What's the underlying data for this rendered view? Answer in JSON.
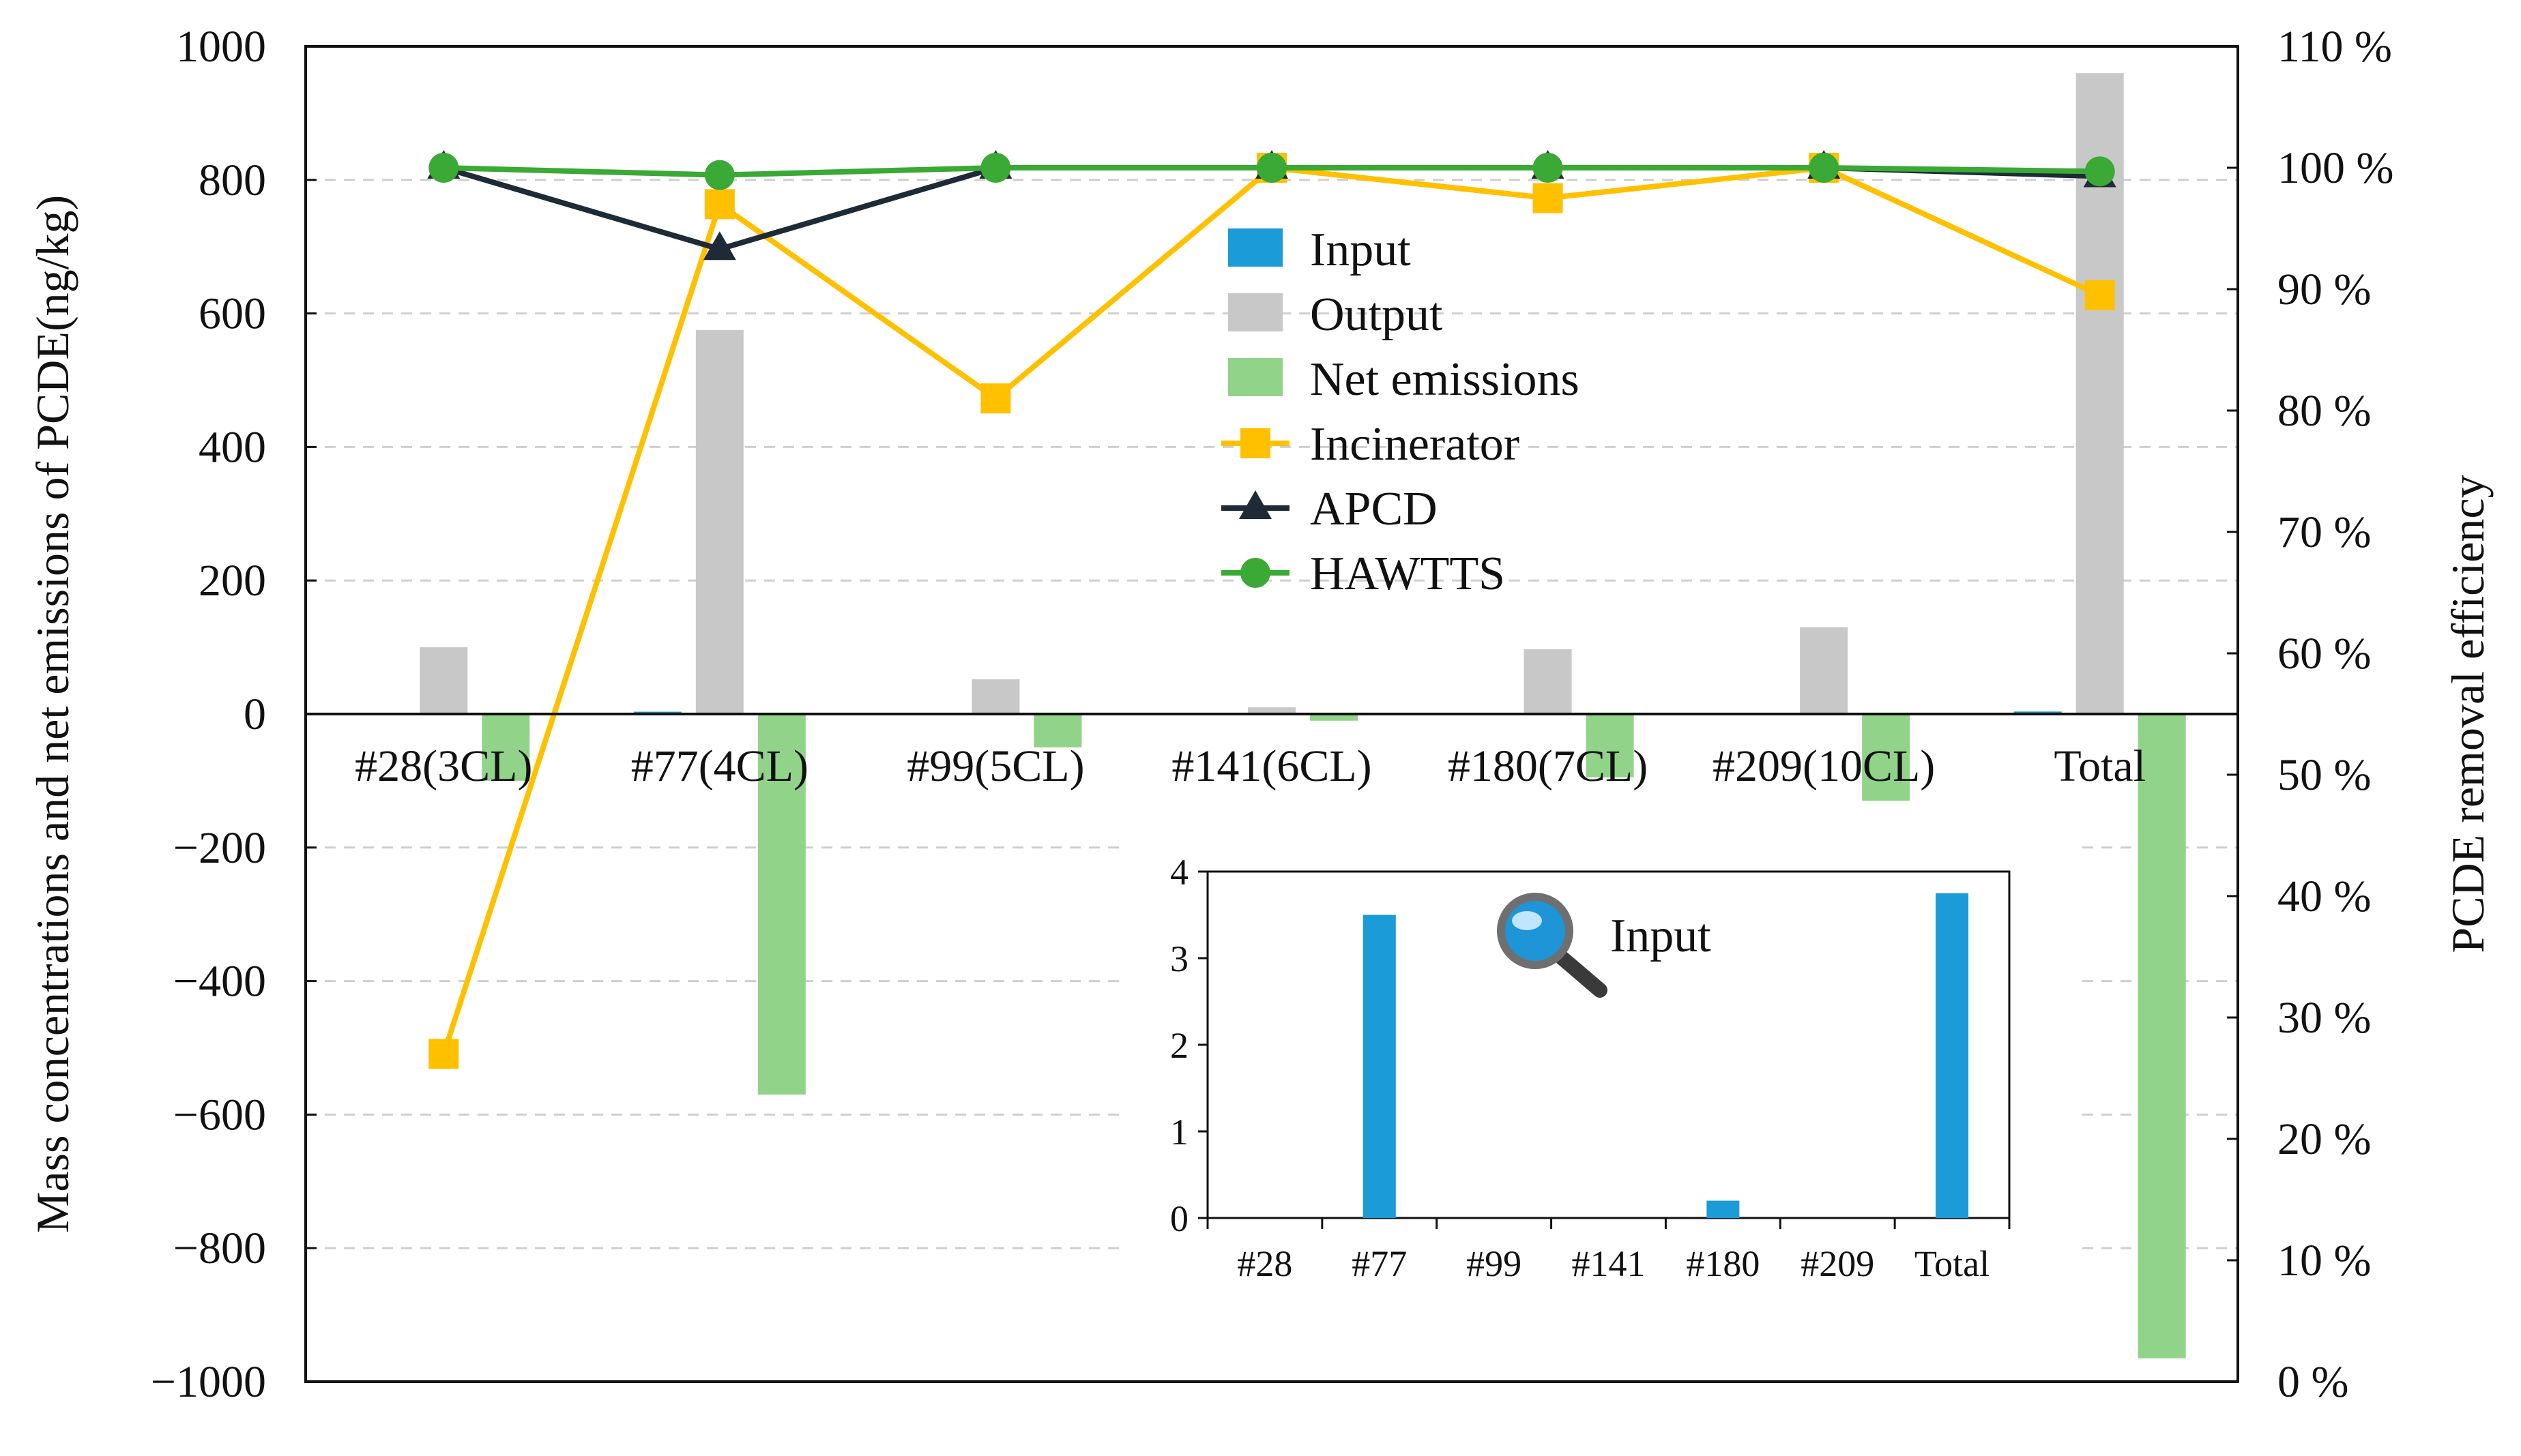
{
  "chart_data": {
    "type": "bar+line",
    "main": {
      "categories": [
        "#28(3CL)",
        "#77(4CL)",
        "#99(5CL)",
        "#141(6CL)",
        "#180(7CL)",
        "#209(10CL)",
        "Total"
      ],
      "bar_series": [
        {
          "name": "Input",
          "color": "#1b9bd7",
          "values": [
            0,
            3.5,
            0,
            0,
            0.2,
            0,
            3.75
          ]
        },
        {
          "name": "Output",
          "color": "#c8c8c8",
          "values": [
            100,
            575,
            52,
            10,
            97,
            130,
            960
          ]
        },
        {
          "name": "Net emissions",
          "color": "#92d38a",
          "values": [
            -100,
            -570,
            -50,
            -10,
            -95,
            -130,
            -965
          ]
        }
      ],
      "line_series": [
        {
          "name": "Incinerator",
          "color": "#ffc000",
          "marker": "square",
          "values": [
            27,
            97,
            81,
            100,
            97.5,
            100,
            89.5
          ]
        },
        {
          "name": "APCD",
          "color": "#1e2a36",
          "marker": "triangle",
          "values": [
            100,
            93.3,
            100,
            100,
            100,
            100,
            99.3
          ]
        },
        {
          "name": "HAWTTS",
          "color": "#3aa935",
          "marker": "circle",
          "values": [
            100,
            99.4,
            100,
            100,
            100,
            100,
            99.7
          ]
        }
      ],
      "ylabel": "Mass concentrations and net emissions of PCDE(ng/kg)",
      "ylim": [
        -1000,
        1000
      ],
      "yticks": [
        "1000",
        "800",
        "600",
        "400",
        "200",
        "0",
        "−200",
        "−400",
        "−600",
        "−800",
        "−1000"
      ],
      "ytick_values": [
        1000,
        800,
        600,
        400,
        200,
        0,
        -200,
        -400,
        -600,
        -800,
        -1000
      ],
      "y2label": "PCDE removal efficiency",
      "y2lim": [
        0,
        110
      ],
      "y2ticks": [
        "110 %",
        "100 %",
        "90 %",
        "80 %",
        "70 %",
        "60 %",
        "50 %",
        "40 %",
        "30 %",
        "20 %",
        "10 %",
        "0 %"
      ],
      "y2tick_values": [
        110,
        100,
        90,
        80,
        70,
        60,
        50,
        40,
        30,
        20,
        10,
        0
      ],
      "grid": "dashed horizontal",
      "legend": [
        "Input",
        "Output",
        "Net emissions",
        "Incinerator",
        "APCD",
        "HAWTTS"
      ]
    },
    "inset": {
      "type": "bar",
      "label": "Input",
      "icon": "magnifier-icon",
      "categories": [
        "#28",
        "#77",
        "#99",
        "#141",
        "#180",
        "#209",
        "Total"
      ],
      "values": [
        0,
        3.5,
        0,
        0,
        0.2,
        0,
        3.75
      ],
      "color": "#1b9bd7",
      "ylim": [
        0,
        4
      ],
      "yticks": [
        "4",
        "3",
        "2",
        "1",
        "0"
      ],
      "ytick_values": [
        4,
        3,
        2,
        1,
        0
      ]
    }
  }
}
